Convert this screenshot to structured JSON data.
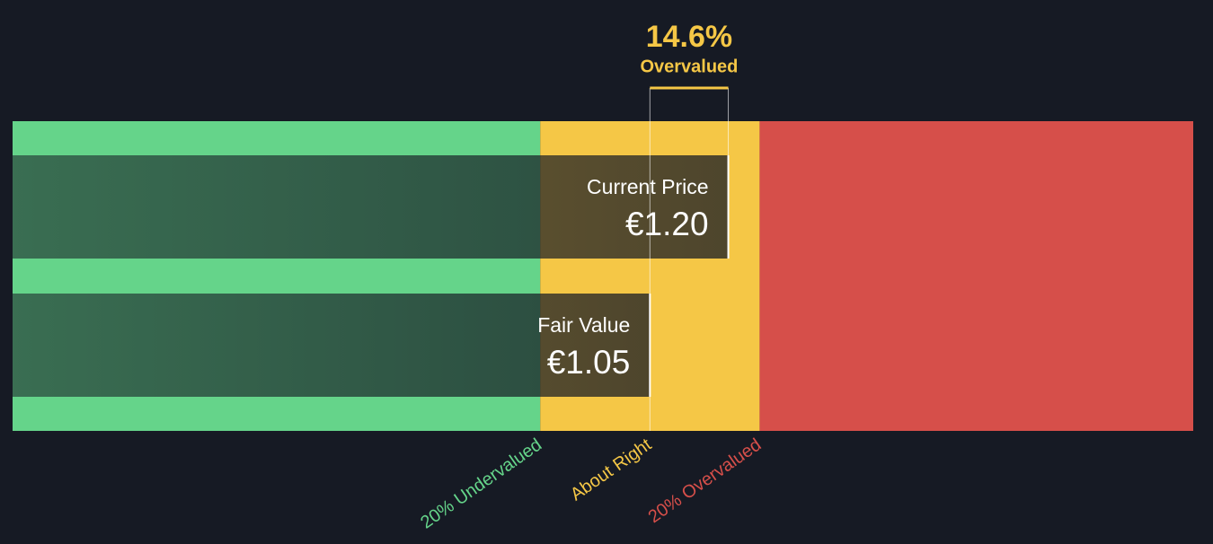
{
  "chart_data": {
    "type": "valuation",
    "xlim": [
      -0.17,
      2.09
    ],
    "bounds": [
      0.84,
      1.26
    ],
    "zones": [
      {
        "label": "20% Undervalued",
        "color": "#65d48a"
      },
      {
        "label": "About Right",
        "color": "#f5c746"
      },
      {
        "label": "20% Overvalued",
        "color": "#d64f4a"
      }
    ],
    "categories": [
      "Current Price",
      "Fair Value"
    ],
    "values": [
      1.2,
      1.05
    ],
    "value_labels": [
      "€1.20",
      "€1.05"
    ],
    "difference": {
      "value": 14.6,
      "label": "14.6%",
      "text": "Overvalued",
      "color": "#f5c746"
    }
  }
}
